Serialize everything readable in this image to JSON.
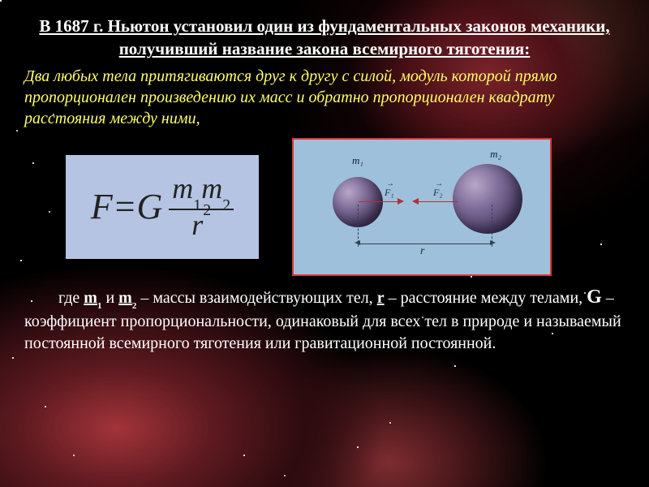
{
  "title": "В 1687 г. Ньютон установил один из фундаментальных законов механики, получивший название закона всемирного тяготения:",
  "law_text": "Два любых тела притягиваются друг к другу с силой, модуль которой прямо пропорционален произведению их масс и обратно пропорционален квадрату расстояния между ними,",
  "formula": {
    "lhs": "F",
    "eq": " = ",
    "G": "G",
    "num_m1": "m",
    "num_s1": "1",
    "num_m2": "m",
    "num_s2": "2",
    "den_r": "r",
    "den_exp": "2",
    "box_bg": "#b4c4e2",
    "box_border": "#000000"
  },
  "diagram": {
    "bg": "#9fc0da",
    "border": "#e03538",
    "m1_label": "m₁",
    "m2_label": "m₂",
    "f1_label": "F₁",
    "f2_label": "F₂",
    "r_label": "r",
    "sphere_color_a": "#b9a7c8",
    "sphere_color_b": "#4e3f68",
    "vec_color": "#b23035"
  },
  "explain": {
    "p1a": "где ",
    "m1": "m",
    "s1": "1",
    "p1b": " и ",
    "m2": "m",
    "s2": "2",
    "p1c": " – массы взаимодействующих тел, ",
    "r": "r",
    "p1d": " – расстояние между телами, ",
    "G": "G",
    "p1e": " – коэффициент пропорциональности, одинаковый для всех тел в природе и называемый постоянной всемирного тяготения или гравитационной постоянной."
  },
  "colors": {
    "title": "#ffffff",
    "law": "#ffff66",
    "body": "#ffffff"
  }
}
